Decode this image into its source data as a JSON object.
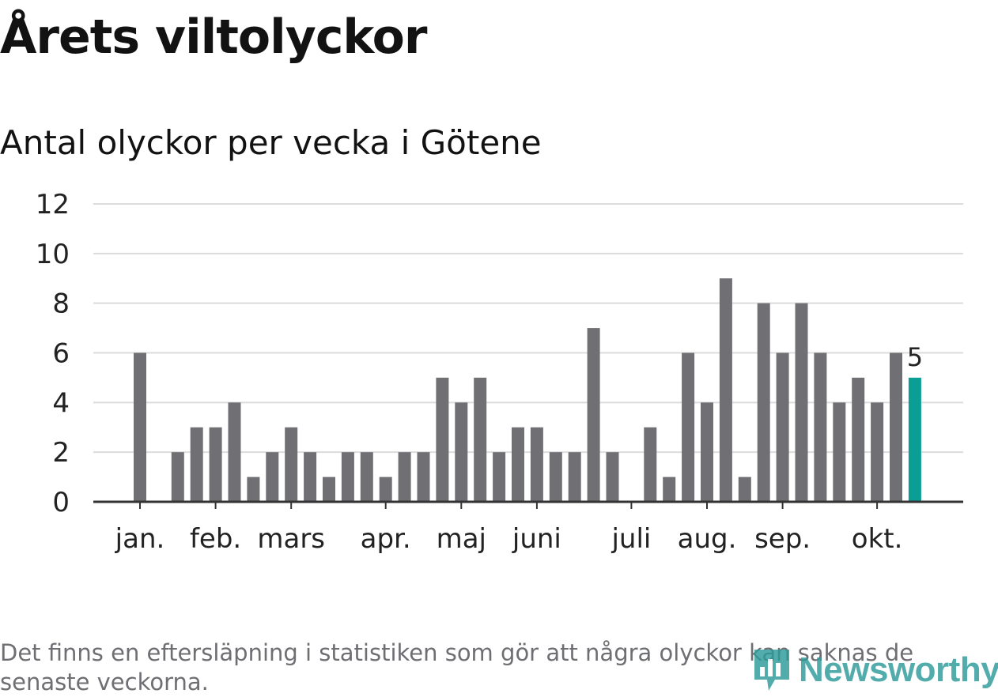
{
  "title": "Årets viltolyckor",
  "subtitle": "Antal olyckor per vecka i Götene",
  "footnote": "Det finns en eftersläpning i statistiken som gör att några olyckor kan saknas de senaste veckorna.",
  "logo_text": "Newsworthy",
  "colors": {
    "bar": "#707074",
    "highlight": "#0a9e94",
    "grid": "#dcdcdc",
    "axis": "#333333",
    "text": "#222222",
    "logo": "#2e9b9a"
  },
  "chart_data": {
    "type": "bar",
    "ylim": [
      0,
      12
    ],
    "yticks": [
      0,
      2,
      4,
      6,
      8,
      10,
      12
    ],
    "values": [
      6,
      0,
      2,
      3,
      3,
      4,
      1,
      2,
      3,
      2,
      1,
      2,
      2,
      1,
      2,
      2,
      5,
      4,
      5,
      2,
      3,
      3,
      2,
      2,
      7,
      2,
      0,
      3,
      1,
      6,
      4,
      9,
      1,
      8,
      6,
      8,
      6,
      4,
      5,
      4,
      6,
      5
    ],
    "highlight_index": 41,
    "highlight_label": "5",
    "month_labels": [
      {
        "label": "jan.",
        "bar_index": 0
      },
      {
        "label": "feb.",
        "bar_index": 4
      },
      {
        "label": "mars",
        "bar_index": 8
      },
      {
        "label": "apr.",
        "bar_index": 13
      },
      {
        "label": "maj",
        "bar_index": 17
      },
      {
        "label": "juni",
        "bar_index": 21
      },
      {
        "label": "juli",
        "bar_index": 26
      },
      {
        "label": "aug.",
        "bar_index": 30
      },
      {
        "label": "sep.",
        "bar_index": 34
      },
      {
        "label": "okt.",
        "bar_index": 39
      }
    ]
  }
}
